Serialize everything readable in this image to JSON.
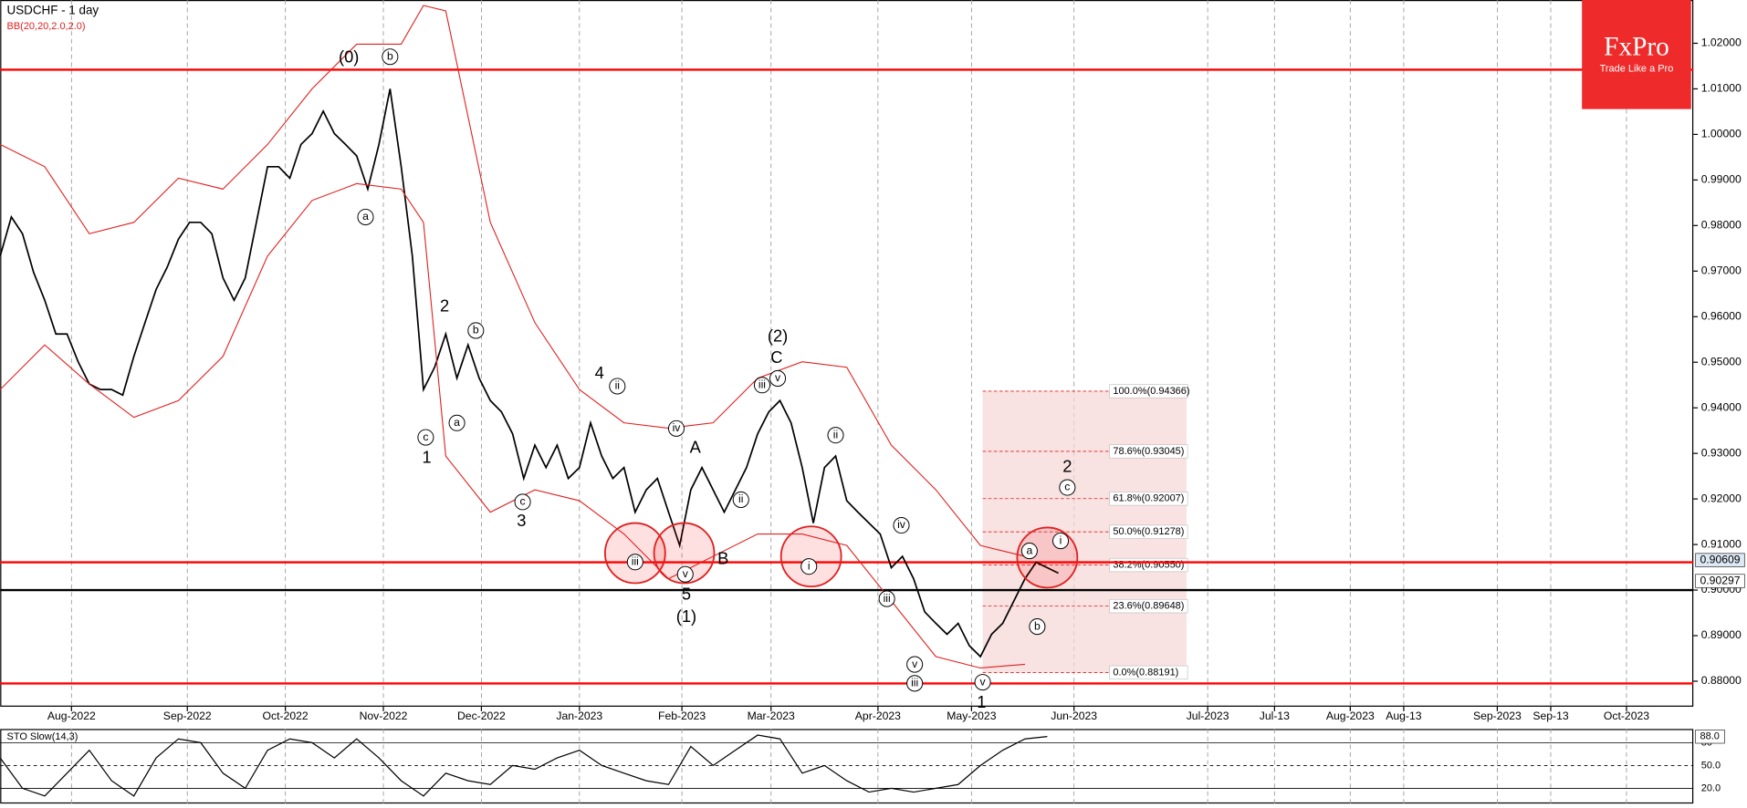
{
  "chart_data": {
    "type": "line",
    "title": "USDCHF - 1 day",
    "subtitle": "BB(20,20,2.0,2.0)",
    "logo": {
      "brand": "FxPro",
      "tagline": "Trade Like a Pro"
    },
    "xlim": [
      0,
      380
    ],
    "ylim": [
      0.8744,
      1.0295
    ],
    "xticks": [
      {
        "value": 16,
        "label": "Aug-2022"
      },
      {
        "value": 42,
        "label": "Sep-2022"
      },
      {
        "value": 64,
        "label": "Oct-2022"
      },
      {
        "value": 86,
        "label": "Nov-2022"
      },
      {
        "value": 108,
        "label": "Dec-2022"
      },
      {
        "value": 130,
        "label": "Jan-2023"
      },
      {
        "value": 153,
        "label": "Feb-2023"
      },
      {
        "value": 173,
        "label": "Mar-2023"
      },
      {
        "value": 197,
        "label": "Apr-2023"
      },
      {
        "value": 218,
        "label": "May-2023"
      },
      {
        "value": 241,
        "label": "Jun-2023"
      },
      {
        "value": 271,
        "label": "Jul-2023"
      },
      {
        "value": 286,
        "label": "Jul-13"
      },
      {
        "value": 303,
        "label": "Aug-2023"
      },
      {
        "value": 315,
        "label": "Aug-13"
      },
      {
        "value": 336,
        "label": "Sep-2023"
      },
      {
        "value": 348,
        "label": "Sep-13"
      },
      {
        "value": 365,
        "label": "Oct-2023"
      }
    ],
    "yticks": [
      {
        "value": 0.88,
        "label": "0.88000"
      },
      {
        "value": 0.89,
        "label": "0.89000"
      },
      {
        "value": 0.9,
        "label": "0.90000"
      },
      {
        "value": 0.91,
        "label": "0.91000"
      },
      {
        "value": 0.92,
        "label": "0.92000"
      },
      {
        "value": 0.93,
        "label": "0.93000"
      },
      {
        "value": 0.94,
        "label": "0.94000"
      },
      {
        "value": 0.95,
        "label": "0.95000"
      },
      {
        "value": 0.96,
        "label": "0.96000"
      },
      {
        "value": 0.97,
        "label": "0.97000"
      },
      {
        "value": 0.98,
        "label": "0.98000"
      },
      {
        "value": 0.99,
        "label": "0.99000"
      },
      {
        "value": 1.0,
        "label": "1.00000"
      },
      {
        "value": 1.01,
        "label": "1.01000"
      },
      {
        "value": 1.02,
        "label": "1.02000"
      }
    ],
    "price_markers": [
      {
        "value": 0.90609,
        "label": "0.90609"
      },
      {
        "value": 0.90297,
        "label": "0.90297"
      }
    ],
    "grid": true,
    "series": [
      {
        "color": "#000000",
        "x": [
          0,
          2.5,
          5,
          7.5,
          10,
          12.5,
          15,
          17.5,
          20,
          22.5,
          25,
          27.5,
          30,
          32.5,
          35,
          37.5,
          40,
          42.5,
          45,
          47.5,
          50,
          52.5,
          55,
          57.5,
          60,
          62.5,
          65,
          67.5,
          70,
          72.5,
          75,
          77.5,
          80,
          82.5,
          85,
          87.5,
          90,
          92.5,
          95,
          97.5,
          100,
          102.5,
          105,
          107.5,
          110,
          112.5,
          115,
          117.5,
          120,
          122.5,
          125,
          127.5,
          130,
          132.5,
          135,
          137.5,
          140,
          142.5,
          145,
          147.5,
          150,
          152.5,
          155,
          157.5,
          160,
          162.5,
          165,
          167.5,
          170,
          172.5,
          175,
          177.5,
          180,
          182.5,
          185,
          187.5,
          190,
          192.5,
          195,
          197.5,
          200,
          202.5,
          205,
          207.5,
          210,
          212.5,
          215,
          217.5,
          220,
          222.5,
          225,
          227.5,
          230,
          232.5,
          235,
          237.5
        ],
        "values": [
          0.9733,
          0.9819,
          0.9782,
          0.9697,
          0.9636,
          0.9562,
          0.9562,
          0.9501,
          0.9452,
          0.944,
          0.944,
          0.9428,
          0.9513,
          0.9587,
          0.966,
          0.9709,
          0.977,
          0.9807,
          0.9807,
          0.9782,
          0.9685,
          0.9636,
          0.9685,
          0.9807,
          0.9929,
          0.9929,
          0.9904,
          0.9978,
          1.0002,
          1.0051,
          1.0002,
          0.9978,
          0.9953,
          0.988,
          0.9978,
          1.01,
          0.9929,
          0.9733,
          0.944,
          0.9489,
          0.9562,
          0.9465,
          0.9538,
          0.9465,
          0.9416,
          0.9391,
          0.9343,
          0.9245,
          0.9318,
          0.9269,
          0.9318,
          0.9245,
          0.9269,
          0.9367,
          0.9294,
          0.9245,
          0.9269,
          0.9171,
          0.922,
          0.9245,
          0.9171,
          0.9098,
          0.922,
          0.9269,
          0.922,
          0.9171,
          0.922,
          0.9269,
          0.9343,
          0.9391,
          0.9416,
          0.9367,
          0.9269,
          0.9147,
          0.9269,
          0.9294,
          0.9196,
          0.9171,
          0.9147,
          0.9123,
          0.9049,
          0.9074,
          0.9025,
          0.8952,
          0.8927,
          0.8903,
          0.8927,
          0.8878,
          0.8854,
          0.8903,
          0.8927,
          0.8976,
          0.9025,
          0.9061,
          0.9049,
          0.9037
        ]
      },
      {
        "color": "#e02020",
        "x": [
          0,
          10,
          20,
          30,
          40,
          50,
          60,
          70,
          80,
          90,
          95,
          100,
          110,
          120,
          130,
          140,
          150,
          160,
          170,
          180,
          190,
          200,
          210,
          220,
          230
        ],
        "values": [
          0.9978,
          0.9929,
          0.9782,
          0.9807,
          0.9904,
          0.988,
          0.9978,
          1.01,
          1.0198,
          1.0198,
          1.0283,
          1.0271,
          0.9807,
          0.9587,
          0.944,
          0.9367,
          0.9355,
          0.9367,
          0.9465,
          0.9501,
          0.9489,
          0.9318,
          0.922,
          0.9098,
          0.9074
        ]
      },
      {
        "color": "#e02020",
        "x": [
          0,
          10,
          20,
          30,
          40,
          50,
          60,
          70,
          80,
          90,
          95,
          100,
          110,
          120,
          130,
          140,
          150,
          160,
          170,
          180,
          190,
          200,
          210,
          220,
          230
        ],
        "values": [
          0.944,
          0.9538,
          0.9452,
          0.9379,
          0.9416,
          0.9513,
          0.9733,
          0.9855,
          0.9892,
          0.988,
          0.9807,
          0.9294,
          0.9171,
          0.922,
          0.9196,
          0.9123,
          0.9025,
          0.9074,
          0.9123,
          0.9123,
          0.9098,
          0.8976,
          0.8854,
          0.8829,
          0.8837
        ]
      }
    ],
    "levels": [
      {
        "value": 1.0142,
        "color": "#ff0000"
      },
      {
        "value": 0.9061,
        "color": "#ff0000"
      },
      {
        "value": 0.9,
        "color": "#000000"
      },
      {
        "value": 0.8795,
        "color": "#ff0000"
      }
    ],
    "fib_levels": [
      {
        "value": 0.94366,
        "label": "100.0%(0.94366)"
      },
      {
        "value": 0.93045,
        "label": "78.6%(0.93045)"
      },
      {
        "value": 0.92007,
        "label": "61.8%(0.92007)"
      },
      {
        "value": 0.91278,
        "label": "50.0%(0.91278)"
      },
      {
        "value": 0.9055,
        "label": "38.2%(0.90550)"
      },
      {
        "value": 0.89648,
        "label": "23.6%(0.89648)"
      },
      {
        "value": 0.88191,
        "label": "0.0%(0.88191)"
      }
    ],
    "wave_labels": [
      "(0)",
      "1",
      "2",
      "3",
      "4",
      "5",
      "(1)",
      "A",
      "B",
      "C",
      "(2)",
      "2",
      "1"
    ],
    "wave_circled": [
      "b",
      "a",
      "c",
      "b",
      "a",
      "c",
      "iii",
      "v",
      "i",
      "iii",
      "v",
      "a",
      "b",
      "c",
      "i",
      "ii",
      "iv",
      "ii",
      "iii",
      "v",
      "ii",
      "iv",
      "v",
      "iii"
    ],
    "oscillator": {
      "title": "STO Slow(14,3)",
      "ylim": [
        0,
        98
      ],
      "yticks": [
        {
          "value": 20,
          "label": "20.0"
        },
        {
          "value": 50,
          "label": "50.0"
        },
        80
      ],
      "marker": {
        "value": 88,
        "label": "88.0"
      },
      "x": [
        0,
        5,
        10,
        15,
        20,
        25,
        30,
        35,
        40,
        45,
        50,
        55,
        60,
        65,
        70,
        75,
        80,
        85,
        90,
        95,
        100,
        105,
        110,
        115,
        120,
        125,
        130,
        135,
        140,
        145,
        150,
        155,
        160,
        165,
        170,
        175,
        180,
        185,
        190,
        195,
        200,
        205,
        210,
        215,
        220,
        225,
        230,
        235
      ],
      "values": [
        60,
        20,
        10,
        40,
        70,
        30,
        10,
        60,
        85,
        80,
        40,
        20,
        70,
        85,
        80,
        60,
        85,
        60,
        30,
        10,
        40,
        30,
        25,
        50,
        45,
        60,
        70,
        50,
        40,
        30,
        25,
        75,
        50,
        70,
        90,
        85,
        40,
        50,
        30,
        15,
        20,
        15,
        20,
        25,
        50,
        70,
        85,
        88
      ],
      "color": "#000000"
    }
  }
}
